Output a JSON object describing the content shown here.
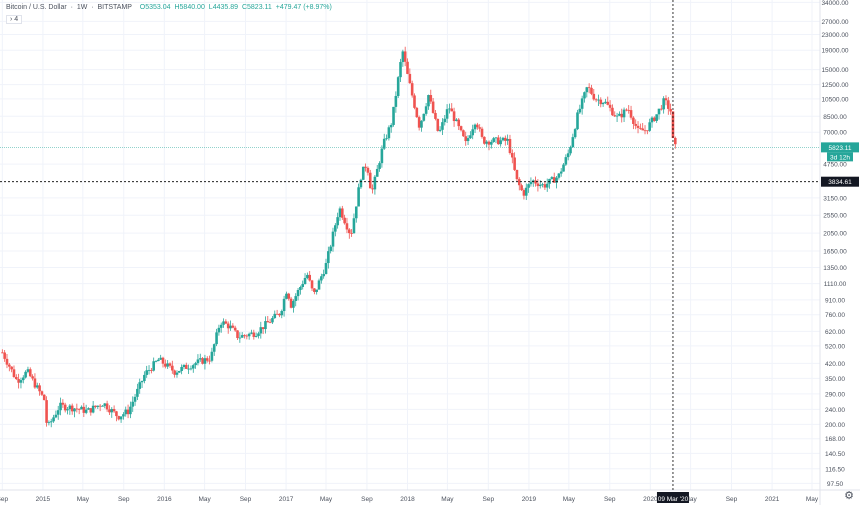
{
  "symbol": {
    "name": "Bitcoin / U.S. Dollar",
    "interval": "1W",
    "exchange": "BITSTAMP",
    "open": "O5353.04",
    "high": "H5840.00",
    "low": "L4435.89",
    "close": "C5823.11",
    "change": "+479.47 (+8.97%)",
    "indicator_toggle": "› 4"
  },
  "colors": {
    "up": "#26a69a",
    "down": "#ef5350",
    "crosshair": "#000000",
    "grid": "#f0f3fa",
    "price_line": "#26a69a"
  },
  "icons": {
    "settings": "gear-icon"
  },
  "chart_data": {
    "type": "candlestick",
    "scale": "log",
    "ylim": [
      90,
      35000
    ],
    "y_ticks": [
      "34000.00",
      "27000.00",
      "23000.00",
      "19000.00",
      "15000.00",
      "12500.00",
      "10500.00",
      "8500.00",
      "7000.00",
      "5823.11",
      "4750.00",
      "3834.61",
      "3150.00",
      "2550.00",
      "2050.00",
      "1650.00",
      "1350.00",
      "1110.00",
      "910.00",
      "760.00",
      "620.00",
      "520.00",
      "420.00",
      "350.00",
      "290.00",
      "240.00",
      "200.00",
      "168.00",
      "140.50",
      "116.50",
      "97.50"
    ],
    "x_ticks": [
      "Sep",
      "2015",
      "May",
      "Sep",
      "2016",
      "May",
      "Sep",
      "2017",
      "May",
      "Sep",
      "2018",
      "May",
      "Sep",
      "2019",
      "May",
      "Sep",
      "2020",
      "May",
      "Sep",
      "2021",
      "May"
    ],
    "current_price_label": "5823.11",
    "countdown_label": "3d 12h",
    "crosshair_price_label": "3834.61",
    "crosshair_date_label": "09 Mar '20",
    "anchors": [
      [
        "2014-09-01",
        480
      ],
      [
        "2014-10-15",
        340
      ],
      [
        "2014-11-15",
        380
      ],
      [
        "2015-01-05",
        270
      ],
      [
        "2015-01-14",
        190
      ],
      [
        "2015-02-20",
        250
      ],
      [
        "2015-04-01",
        245
      ],
      [
        "2015-05-15",
        235
      ],
      [
        "2015-07-01",
        260
      ],
      [
        "2015-08-15",
        220
      ],
      [
        "2015-09-15",
        235
      ],
      [
        "2015-11-04",
        370
      ],
      [
        "2015-12-15",
        440
      ],
      [
        "2016-02-01",
        380
      ],
      [
        "2016-04-01",
        420
      ],
      [
        "2016-05-20",
        450
      ],
      [
        "2016-06-17",
        700
      ],
      [
        "2016-07-15",
        660
      ],
      [
        "2016-08-10",
        580
      ],
      [
        "2016-10-01",
        610
      ],
      [
        "2016-12-15",
        780
      ],
      [
        "2017-01-04",
        1050
      ],
      [
        "2017-01-15",
        850
      ],
      [
        "2017-03-05",
        1250
      ],
      [
        "2017-03-25",
        960
      ],
      [
        "2017-05-01",
        1400
      ],
      [
        "2017-06-10",
        2800
      ],
      [
        "2017-07-15",
        2000
      ],
      [
        "2017-08-15",
        4200
      ],
      [
        "2017-09-01",
        4800
      ],
      [
        "2017-09-15",
        3300
      ],
      [
        "2017-10-20",
        6000
      ],
      [
        "2017-11-15",
        8000
      ],
      [
        "2017-12-17",
        19000
      ],
      [
        "2018-01-01",
        14000
      ],
      [
        "2018-02-06",
        7500
      ],
      [
        "2018-03-05",
        11000
      ],
      [
        "2018-04-05",
        6800
      ],
      [
        "2018-05-05",
        9600
      ],
      [
        "2018-06-25",
        6100
      ],
      [
        "2018-07-25",
        8200
      ],
      [
        "2018-08-15",
        6300
      ],
      [
        "2018-10-30",
        6300
      ],
      [
        "2018-11-25",
        3900
      ],
      [
        "2018-12-15",
        3300
      ],
      [
        "2019-01-10",
        3900
      ],
      [
        "2019-02-15",
        3650
      ],
      [
        "2019-03-31",
        4100
      ],
      [
        "2019-05-01",
        5500
      ],
      [
        "2019-05-28",
        8700
      ],
      [
        "2019-06-26",
        12200
      ],
      [
        "2019-07-20",
        10500
      ],
      [
        "2019-08-15",
        10200
      ],
      [
        "2019-09-25",
        8300
      ],
      [
        "2019-10-26",
        9400
      ],
      [
        "2019-11-25",
        7100
      ],
      [
        "2019-12-18",
        7200
      ],
      [
        "2020-01-20",
        8700
      ],
      [
        "2020-02-12",
        10300
      ],
      [
        "2020-03-05",
        8900
      ],
      [
        "2020-03-12",
        4900
      ],
      [
        "2020-03-16",
        5823
      ]
    ],
    "window_start": "2014-08-25",
    "window_end": "2021-05-25"
  }
}
